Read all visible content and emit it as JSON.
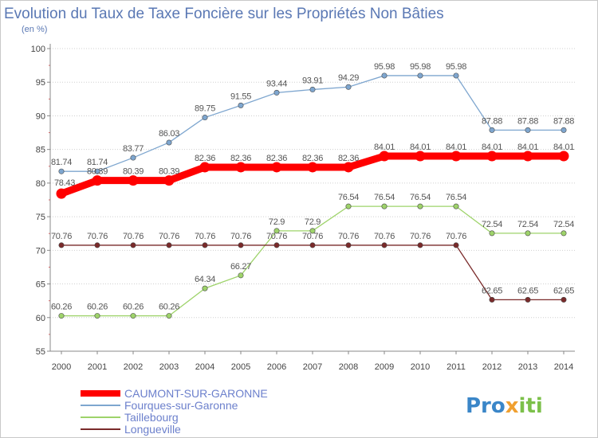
{
  "chart_data": {
    "type": "line",
    "title": "Evolution du Taux de Taxe Foncière sur les Propriétés Non Bâties",
    "subtitle": "(en %)",
    "xlabel": "",
    "ylabel": "",
    "x": [
      "2000",
      "2001",
      "2002",
      "2003",
      "2004",
      "2005",
      "2006",
      "2007",
      "2008",
      "2009",
      "2010",
      "2011",
      "2012",
      "2013",
      "2014"
    ],
    "ylim": [
      55,
      100
    ],
    "yticks": [
      "55",
      "60",
      "65",
      "70",
      "75",
      "80",
      "85",
      "90",
      "95",
      "100"
    ],
    "grid": "horizontal dotted",
    "legend": "bottom-left",
    "series": [
      {
        "name": "CAUMONT-SUR-GARONNE",
        "color": "#ff0000",
        "values": [
          78.43,
          80.39,
          80.39,
          80.39,
          82.36,
          82.36,
          82.36,
          82.36,
          82.36,
          84.01,
          84.01,
          84.01,
          84.01,
          84.01,
          84.01
        ],
        "labels": [
          "78.43",
          "80.39",
          "80.39",
          "80.39",
          "82.36",
          "82.36",
          "82.36",
          "82.36",
          "82.36",
          "84.01",
          "84.01",
          "84.01",
          "84.01",
          "84.01",
          "84.01"
        ]
      },
      {
        "name": "Fourques-sur-Garonne",
        "color": "#7ea6cf",
        "values": [
          81.74,
          81.74,
          83.77,
          86.03,
          89.75,
          91.55,
          93.44,
          93.91,
          94.29,
          95.98,
          95.98,
          95.98,
          87.88,
          87.88,
          87.88
        ],
        "labels": [
          "81.74",
          "81.74",
          "83.77",
          "86.03",
          "89.75",
          "91.55",
          "93.44",
          "93.91",
          "94.29",
          "95.98",
          "95.98",
          "95.98",
          "87.88",
          "87.88",
          "87.88"
        ]
      },
      {
        "name": "Taillebourg",
        "color": "#9ed36a",
        "values": [
          60.26,
          60.26,
          60.26,
          60.26,
          64.34,
          66.27,
          72.9,
          72.9,
          76.54,
          76.54,
          76.54,
          76.54,
          72.54,
          72.54,
          72.54
        ],
        "labels": [
          "60.26",
          "60.26",
          "60.26",
          "60.26",
          "64.34",
          "66.27",
          "72.9",
          "72.9",
          "76.54",
          "76.54",
          "76.54",
          "76.54",
          "72.54",
          "72.54",
          "72.54"
        ]
      },
      {
        "name": "Longueville",
        "color": "#7a2a2a",
        "values": [
          70.76,
          70.76,
          70.76,
          70.76,
          70.76,
          70.76,
          70.76,
          70.76,
          70.76,
          70.76,
          70.76,
          70.76,
          62.65,
          62.65,
          62.65
        ],
        "labels": [
          "70.76",
          "70.76",
          "70.76",
          "70.76",
          "70.76",
          "70.76",
          "70.76",
          "70.76",
          "70.76",
          "70.76",
          "70.76",
          "70.76",
          "62.65",
          "62.65",
          "62.65"
        ]
      }
    ]
  },
  "logo": {
    "text_dark": "Pro",
    "text_x": "x",
    "text_tail": "iti"
  }
}
